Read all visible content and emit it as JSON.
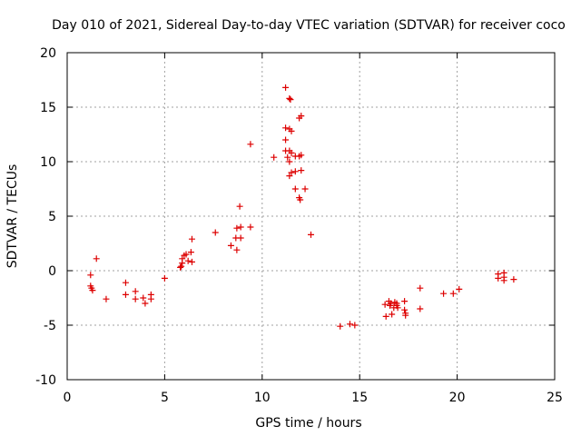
{
  "chart_data": {
    "type": "scatter",
    "title": "Day 010 of 2021, Sidereal Day-to-day VTEC variation (SDTVAR) for receiver coco",
    "xlabel": "GPS time / hours",
    "ylabel": "SDTVAR / TECUs",
    "xlim": [
      0,
      25
    ],
    "ylim": [
      -10,
      20
    ],
    "xticks": [
      0,
      5,
      10,
      15,
      20,
      25
    ],
    "yticks": [
      -10,
      -5,
      0,
      5,
      10,
      15,
      20
    ],
    "grid": true,
    "marker": "+",
    "color": "#dd0000",
    "series": [
      {
        "name": "SDTVAR",
        "points": [
          [
            1.2,
            -0.4
          ],
          [
            1.2,
            -1.4
          ],
          [
            1.25,
            -1.6
          ],
          [
            1.3,
            -1.8
          ],
          [
            1.5,
            1.1
          ],
          [
            2.0,
            -2.6
          ],
          [
            3.0,
            -1.1
          ],
          [
            3.0,
            -2.2
          ],
          [
            3.5,
            -1.9
          ],
          [
            3.5,
            -2.6
          ],
          [
            3.9,
            -2.5
          ],
          [
            4.0,
            -3.0
          ],
          [
            4.3,
            -2.6
          ],
          [
            4.3,
            -2.2
          ],
          [
            5.0,
            -0.7
          ],
          [
            5.8,
            0.3
          ],
          [
            5.85,
            0.4
          ],
          [
            5.9,
            0.7
          ],
          [
            5.9,
            1.1
          ],
          [
            6.0,
            1.4
          ],
          [
            6.1,
            1.5
          ],
          [
            6.2,
            0.9
          ],
          [
            6.35,
            1.7
          ],
          [
            6.4,
            0.8
          ],
          [
            6.4,
            2.9
          ],
          [
            7.6,
            3.5
          ],
          [
            8.4,
            2.3
          ],
          [
            8.65,
            3.0
          ],
          [
            8.7,
            1.9
          ],
          [
            8.7,
            3.9
          ],
          [
            8.85,
            5.9
          ],
          [
            8.9,
            3.0
          ],
          [
            8.9,
            4.0
          ],
          [
            9.4,
            11.6
          ],
          [
            9.4,
            4.0
          ],
          [
            10.6,
            10.4
          ],
          [
            11.2,
            16.8
          ],
          [
            11.2,
            13.1
          ],
          [
            11.2,
            12.0
          ],
          [
            11.2,
            11.0
          ],
          [
            11.3,
            10.4
          ],
          [
            11.4,
            15.8
          ],
          [
            11.45,
            15.7
          ],
          [
            11.4,
            13.0
          ],
          [
            11.5,
            12.8
          ],
          [
            11.4,
            11.0
          ],
          [
            11.5,
            10.8
          ],
          [
            11.4,
            10.0
          ],
          [
            11.5,
            9.0
          ],
          [
            11.4,
            8.7
          ],
          [
            11.7,
            10.5
          ],
          [
            11.7,
            9.1
          ],
          [
            11.7,
            7.5
          ],
          [
            11.9,
            14.0
          ],
          [
            12.0,
            14.2
          ],
          [
            11.9,
            10.5
          ],
          [
            12.0,
            10.6
          ],
          [
            12.0,
            9.2
          ],
          [
            11.9,
            6.7
          ],
          [
            11.95,
            6.5
          ],
          [
            12.2,
            7.5
          ],
          [
            12.5,
            3.3
          ],
          [
            14.0,
            -5.1
          ],
          [
            14.5,
            -4.9
          ],
          [
            14.75,
            -5.0
          ],
          [
            16.3,
            -3.1
          ],
          [
            16.35,
            -4.2
          ],
          [
            16.5,
            -2.8
          ],
          [
            16.55,
            -3.2
          ],
          [
            16.6,
            -3.0
          ],
          [
            16.65,
            -4.0
          ],
          [
            16.75,
            -3.4
          ],
          [
            16.8,
            -2.9
          ],
          [
            16.9,
            -3.2
          ],
          [
            16.9,
            -3.0
          ],
          [
            16.95,
            -3.4
          ],
          [
            17.3,
            -2.8
          ],
          [
            17.3,
            -3.6
          ],
          [
            17.35,
            -3.9
          ],
          [
            17.35,
            -4.1
          ],
          [
            18.1,
            -1.6
          ],
          [
            18.1,
            -3.5
          ],
          [
            19.3,
            -2.1
          ],
          [
            19.8,
            -2.1
          ],
          [
            20.1,
            -1.7
          ],
          [
            22.1,
            -0.3
          ],
          [
            22.1,
            -0.7
          ],
          [
            22.4,
            -0.2
          ],
          [
            22.4,
            -0.6
          ],
          [
            22.4,
            -0.9
          ],
          [
            22.9,
            -0.8
          ]
        ]
      }
    ]
  }
}
